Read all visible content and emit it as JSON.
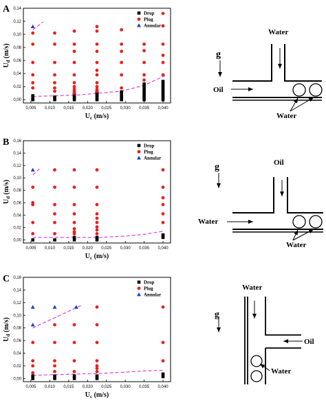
{
  "colors": {
    "drop": "#000000",
    "plug": "#e8201c",
    "annular": "#1f3fcf",
    "boundary": "#e040e0"
  },
  "chart_data": [
    {
      "type": "scatter",
      "panel": "A",
      "xlabel_main": "U",
      "xlabel_sub": "c",
      "xlabel_unit": " (m/s)",
      "ylabel_main": "U",
      "ylabel_sub": "d",
      "ylabel_unit": " (m/s)",
      "xlim": [
        0.003,
        0.042
      ],
      "ylim": [
        -0.005,
        0.14
      ],
      "xticks": [
        "0,005",
        "0,010",
        "0,015",
        "0,020",
        "0,025",
        "0,030",
        "0,035",
        "0,040"
      ],
      "yticks": [
        "0,00",
        "0,02",
        "0,04",
        "0,06",
        "0,08",
        "0,10",
        "0,12",
        "0,14"
      ],
      "legend": [
        "Drop",
        "Plug",
        "Annular"
      ],
      "series": [
        {
          "name": "Drop",
          "marker": "square",
          "x": [
            0.0055,
            0.0055,
            0.0055,
            0.0113,
            0.0113,
            0.0165,
            0.0165,
            0.0165,
            0.0165,
            0.0225,
            0.0225,
            0.0225,
            0.0225,
            0.0225,
            0.029,
            0.029,
            0.029,
            0.029,
            0.035,
            0.035,
            0.035,
            0.035,
            0.035,
            0.035,
            0.035,
            0.04,
            0.04,
            0.04,
            0.04,
            0.04,
            0.04,
            0.04,
            0.04
          ],
          "y": [
            0.0,
            0.003,
            0.006,
            0.0,
            0.004,
            0.0,
            0.003,
            0.006,
            0.009,
            0.0,
            0.003,
            0.006,
            0.009,
            0.012,
            0.0,
            0.004,
            0.008,
            0.012,
            0.0,
            0.004,
            0.008,
            0.012,
            0.016,
            0.02,
            0.024,
            0.0,
            0.004,
            0.008,
            0.012,
            0.016,
            0.02,
            0.024,
            0.028
          ]
        },
        {
          "name": "Plug",
          "marker": "circle",
          "x": [
            0.0055,
            0.0055,
            0.0055,
            0.0055,
            0.0055,
            0.0055,
            0.0113,
            0.0113,
            0.0113,
            0.0113,
            0.0113,
            0.0113,
            0.0113,
            0.0165,
            0.0165,
            0.0165,
            0.0165,
            0.0165,
            0.0165,
            0.0165,
            0.0165,
            0.0165,
            0.0165,
            0.0225,
            0.0225,
            0.0225,
            0.0225,
            0.0225,
            0.0225,
            0.0225,
            0.0225,
            0.0225,
            0.0225,
            0.0225,
            0.029,
            0.029,
            0.029,
            0.029,
            0.029,
            0.029,
            0.035,
            0.035,
            0.035,
            0.035,
            0.035,
            0.04,
            0.04,
            0.04,
            0.04,
            0.04,
            0.04
          ],
          "y": [
            0.018,
            0.026,
            0.038,
            0.057,
            0.085,
            0.102,
            0.013,
            0.018,
            0.026,
            0.038,
            0.057,
            0.085,
            0.102,
            0.01,
            0.013,
            0.016,
            0.02,
            0.026,
            0.038,
            0.057,
            0.074,
            0.085,
            0.105,
            0.013,
            0.016,
            0.02,
            0.026,
            0.038,
            0.045,
            0.057,
            0.074,
            0.085,
            0.105,
            0.112,
            0.018,
            0.038,
            0.057,
            0.074,
            0.085,
            0.107,
            0.03,
            0.038,
            0.057,
            0.075,
            0.085,
            0.038,
            0.057,
            0.068,
            0.085,
            0.113,
            0.132
          ]
        },
        {
          "name": "Annular",
          "marker": "triangle",
          "x": [
            0.0055
          ],
          "y": [
            0.112
          ]
        }
      ],
      "boundaries": [
        {
          "x": [
            0.0055,
            0.017,
            0.023,
            0.029,
            0.035,
            0.041
          ],
          "y": [
            0.005,
            0.007,
            0.01,
            0.013,
            0.022,
            0.038
          ]
        },
        {
          "x": [
            0.0055,
            0.0082
          ],
          "y": [
            0.107,
            0.119
          ]
        }
      ]
    },
    {
      "type": "scatter",
      "panel": "B",
      "xlabel_main": "U",
      "xlabel_sub": "c",
      "xlabel_unit": " (m/s)",
      "ylabel_main": "U",
      "ylabel_sub": "d",
      "ylabel_unit": " (m/s)",
      "xlim": [
        0.003,
        0.042
      ],
      "ylim": [
        -0.005,
        0.16
      ],
      "xticks": [
        "0,005",
        "0,010",
        "0,015",
        "0,020",
        "0,025",
        "0,030",
        "0,035",
        "0,040"
      ],
      "yticks": [
        "0,00",
        "0,02",
        "0,04",
        "0,06",
        "0,08",
        "0,10",
        "0,12",
        "0,14",
        "0,16"
      ],
      "legend": [
        "Drop",
        "Plug",
        "Annular"
      ],
      "series": [
        {
          "name": "Drop",
          "marker": "square",
          "x": [
            0.0055,
            0.0113,
            0.0165,
            0.0165,
            0.0225,
            0.0225,
            0.04,
            0.04
          ],
          "y": [
            0.0,
            0.0,
            0.0,
            0.004,
            0.0,
            0.004,
            0.004,
            0.008
          ]
        },
        {
          "name": "Plug",
          "marker": "circle",
          "x": [
            0.0055,
            0.0055,
            0.0055,
            0.0055,
            0.0055,
            0.0113,
            0.0113,
            0.0113,
            0.0113,
            0.0113,
            0.0113,
            0.0165,
            0.0165,
            0.0165,
            0.0165,
            0.0165,
            0.0165,
            0.0165,
            0.0165,
            0.0225,
            0.0225,
            0.0225,
            0.0225,
            0.0225,
            0.0225,
            0.0225,
            0.0225,
            0.0225,
            0.04,
            0.04,
            0.04,
            0.04,
            0.04,
            0.04
          ],
          "y": [
            0.01,
            0.028,
            0.057,
            0.085,
            0.06,
            0.01,
            0.028,
            0.057,
            0.085,
            0.113,
            0.042,
            0.01,
            0.013,
            0.018,
            0.028,
            0.042,
            0.057,
            0.085,
            0.113,
            0.01,
            0.016,
            0.021,
            0.028,
            0.035,
            0.042,
            0.057,
            0.085,
            0.113,
            0.042,
            0.057,
            0.068,
            0.085,
            0.113,
            0.028
          ]
        },
        {
          "name": "Annular",
          "marker": "triangle",
          "x": [
            0.0055
          ],
          "y": [
            0.113
          ]
        }
      ],
      "boundaries": [
        {
          "x": [
            0.0055,
            0.011,
            0.017,
            0.023,
            0.03,
            0.035,
            0.04
          ],
          "y": [
            0.004,
            0.004,
            0.004,
            0.004,
            0.006,
            0.009,
            0.014
          ]
        },
        {
          "x": [
            0.0055,
            0.0075
          ],
          "y": [
            0.105,
            0.116
          ]
        }
      ]
    },
    {
      "type": "scatter",
      "panel": "C",
      "xlabel_main": "U",
      "xlabel_sub": "c",
      "xlabel_unit": " (m/s)",
      "ylabel_main": "U",
      "ylabel_sub": "d",
      "ylabel_unit": " (m/s)",
      "xlim": [
        0.003,
        0.042
      ],
      "ylim": [
        -0.005,
        0.16
      ],
      "xticks": [
        "0,005",
        "0,010",
        "0,015",
        "0,020",
        "0,025",
        "0,030",
        "0,035",
        "0,040"
      ],
      "yticks": [
        "0,00",
        "0,02",
        "0,04",
        "0,06",
        "0,08",
        "0,10",
        "0,12",
        "0,14",
        "0,16"
      ],
      "legend": [
        "Drop",
        "Plug",
        "Annular"
      ],
      "series": [
        {
          "name": "Drop",
          "marker": "square",
          "x": [
            0.0055,
            0.0055,
            0.0113,
            0.0113,
            0.0165,
            0.0165,
            0.0225,
            0.0225,
            0.04,
            0.04
          ],
          "y": [
            0.0,
            0.004,
            0.0,
            0.004,
            0.0,
            0.004,
            0.0,
            0.004,
            0.003,
            0.007
          ]
        },
        {
          "name": "Plug",
          "marker": "circle",
          "x": [
            0.0055,
            0.0055,
            0.0055,
            0.0055,
            0.0113,
            0.0113,
            0.0113,
            0.0113,
            0.0113,
            0.0165,
            0.0165,
            0.0165,
            0.0165,
            0.0225,
            0.0225,
            0.0225,
            0.0225,
            0.0225,
            0.0225,
            0.0225,
            0.04,
            0.04,
            0.04
          ],
          "y": [
            0.009,
            0.02,
            0.028,
            0.057,
            0.011,
            0.02,
            0.028,
            0.057,
            0.085,
            0.011,
            0.028,
            0.057,
            0.085,
            0.011,
            0.016,
            0.02,
            0.028,
            0.057,
            0.085,
            0.113,
            0.028,
            0.057,
            0.113
          ]
        },
        {
          "name": "Annular",
          "marker": "triangle",
          "x": [
            0.0055,
            0.0055,
            0.0113,
            0.017
          ],
          "y": [
            0.085,
            0.113,
            0.113,
            0.113
          ]
        }
      ],
      "boundaries": [
        {
          "x": [
            0.0055,
            0.011,
            0.017,
            0.023,
            0.03,
            0.035,
            0.04
          ],
          "y": [
            0.005,
            0.006,
            0.007,
            0.008,
            0.01,
            0.012,
            0.013
          ]
        },
        {
          "x": [
            0.0055,
            0.0185
          ],
          "y": [
            0.08,
            0.116
          ]
        }
      ]
    }
  ],
  "diagrams": [
    {
      "panel": "A",
      "g": "g",
      "top_label": "Water",
      "side_label": "Oil",
      "bottom_label": "Water"
    },
    {
      "panel": "B",
      "g": "g",
      "top_label": "Oil",
      "side_label": "Water",
      "bottom_label": "Water"
    },
    {
      "panel": "C",
      "g": "g",
      "top_label": "Water",
      "side_label": "Oil",
      "bottom_label": "Water"
    }
  ]
}
